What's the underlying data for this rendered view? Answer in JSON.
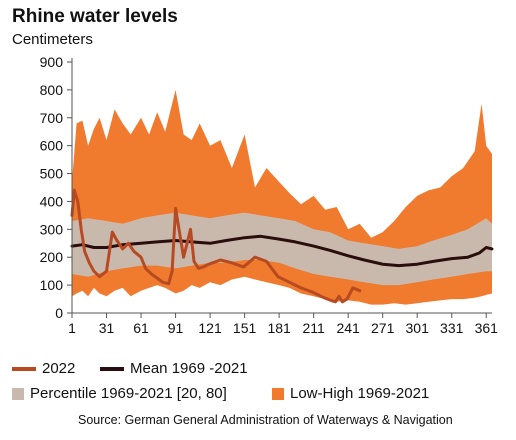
{
  "chart_data": {
    "type": "area",
    "title": "Rhine water levels",
    "ylabel": "Centimeters",
    "xlabel": "",
    "xlim": [
      1,
      366
    ],
    "ylim": [
      0,
      900
    ],
    "x_ticks": [
      1,
      31,
      61,
      91,
      121,
      151,
      181,
      211,
      241,
      271,
      301,
      331,
      361
    ],
    "y_ticks": [
      0,
      100,
      200,
      300,
      400,
      500,
      600,
      700,
      800,
      900
    ],
    "grid": false,
    "legend_position": "bottom",
    "series": [
      {
        "name": "Low-High 1969-2021",
        "kind": "band",
        "color": "#f07a2e",
        "x": [
          1,
          5,
          10,
          15,
          20,
          25,
          31,
          38,
          45,
          52,
          61,
          68,
          75,
          82,
          91,
          98,
          105,
          112,
          121,
          130,
          140,
          151,
          160,
          170,
          181,
          190,
          200,
          211,
          221,
          231,
          241,
          251,
          261,
          271,
          281,
          291,
          301,
          311,
          321,
          331,
          341,
          351,
          357,
          361,
          366
        ],
        "high": [
          470,
          680,
          690,
          600,
          660,
          700,
          620,
          730,
          680,
          640,
          700,
          640,
          720,
          650,
          800,
          640,
          620,
          680,
          600,
          620,
          520,
          640,
          450,
          520,
          470,
          430,
          390,
          420,
          370,
          380,
          300,
          320,
          270,
          290,
          330,
          380,
          420,
          440,
          450,
          490,
          520,
          580,
          750,
          600,
          570
        ],
        "low": [
          60,
          70,
          80,
          60,
          90,
          70,
          60,
          80,
          90,
          60,
          80,
          90,
          100,
          90,
          70,
          80,
          100,
          90,
          110,
          100,
          120,
          130,
          120,
          110,
          100,
          90,
          70,
          60,
          50,
          40,
          45,
          40,
          30,
          30,
          35,
          30,
          35,
          40,
          45,
          50,
          50,
          55,
          60,
          65,
          70
        ]
      },
      {
        "name": "Percentile 1969-2021 [20, 80]",
        "kind": "band",
        "color": "#c9b9ad",
        "x": [
          1,
          15,
          31,
          45,
          61,
          75,
          91,
          105,
          121,
          135,
          151,
          165,
          181,
          195,
          211,
          225,
          241,
          255,
          271,
          285,
          301,
          315,
          331,
          345,
          361,
          366
        ],
        "high": [
          330,
          340,
          330,
          320,
          340,
          350,
          360,
          350,
          340,
          350,
          360,
          350,
          340,
          330,
          300,
          290,
          260,
          250,
          240,
          230,
          240,
          260,
          280,
          300,
          340,
          320
        ],
        "low": [
          140,
          130,
          150,
          160,
          170,
          170,
          160,
          170,
          180,
          180,
          190,
          190,
          180,
          160,
          140,
          130,
          120,
          110,
          100,
          100,
          110,
          120,
          130,
          140,
          150,
          150
        ]
      },
      {
        "name": "Mean 1969-2021",
        "kind": "line",
        "color": "#2a0d0d",
        "x": [
          1,
          10,
          20,
          31,
          45,
          61,
          75,
          91,
          105,
          121,
          135,
          151,
          165,
          181,
          195,
          211,
          225,
          241,
          255,
          271,
          285,
          301,
          315,
          331,
          345,
          355,
          361,
          366
        ],
        "y": [
          240,
          245,
          235,
          235,
          245,
          250,
          255,
          260,
          255,
          250,
          260,
          270,
          275,
          265,
          255,
          240,
          225,
          205,
          190,
          175,
          170,
          175,
          185,
          195,
          200,
          215,
          235,
          230
        ]
      },
      {
        "name": "2022",
        "kind": "line",
        "color": "#b84a22",
        "x": [
          1,
          3,
          6,
          9,
          12,
          16,
          20,
          25,
          31,
          36,
          40,
          45,
          50,
          55,
          61,
          65,
          70,
          75,
          80,
          85,
          88,
          91,
          94,
          98,
          101,
          104,
          107,
          111,
          115,
          120,
          130,
          140,
          150,
          160,
          170,
          180,
          190,
          200,
          210,
          220,
          226,
          230,
          233,
          236,
          240,
          245,
          251
        ],
        "y": [
          350,
          440,
          400,
          300,
          220,
          180,
          150,
          130,
          150,
          290,
          260,
          230,
          250,
          220,
          200,
          160,
          140,
          125,
          110,
          105,
          150,
          375,
          300,
          200,
          250,
          300,
          185,
          160,
          165,
          175,
          190,
          180,
          165,
          200,
          185,
          130,
          110,
          90,
          75,
          55,
          45,
          40,
          60,
          40,
          50,
          90,
          80
        ]
      }
    ]
  },
  "legend": {
    "items": [
      {
        "label": "2022",
        "color": "#b84a22",
        "kind": "line"
      },
      {
        "label": "Mean 1969 -2021",
        "color": "#2a0d0d",
        "kind": "line"
      },
      {
        "label": "Percentile 1969-2021 [20, 80]",
        "color": "#c9b9ad",
        "kind": "box"
      },
      {
        "label": "Low-High 1969-2021",
        "color": "#f07a2e",
        "kind": "box"
      }
    ]
  },
  "source": "Source: German General Administration of Waterways & Navigation"
}
